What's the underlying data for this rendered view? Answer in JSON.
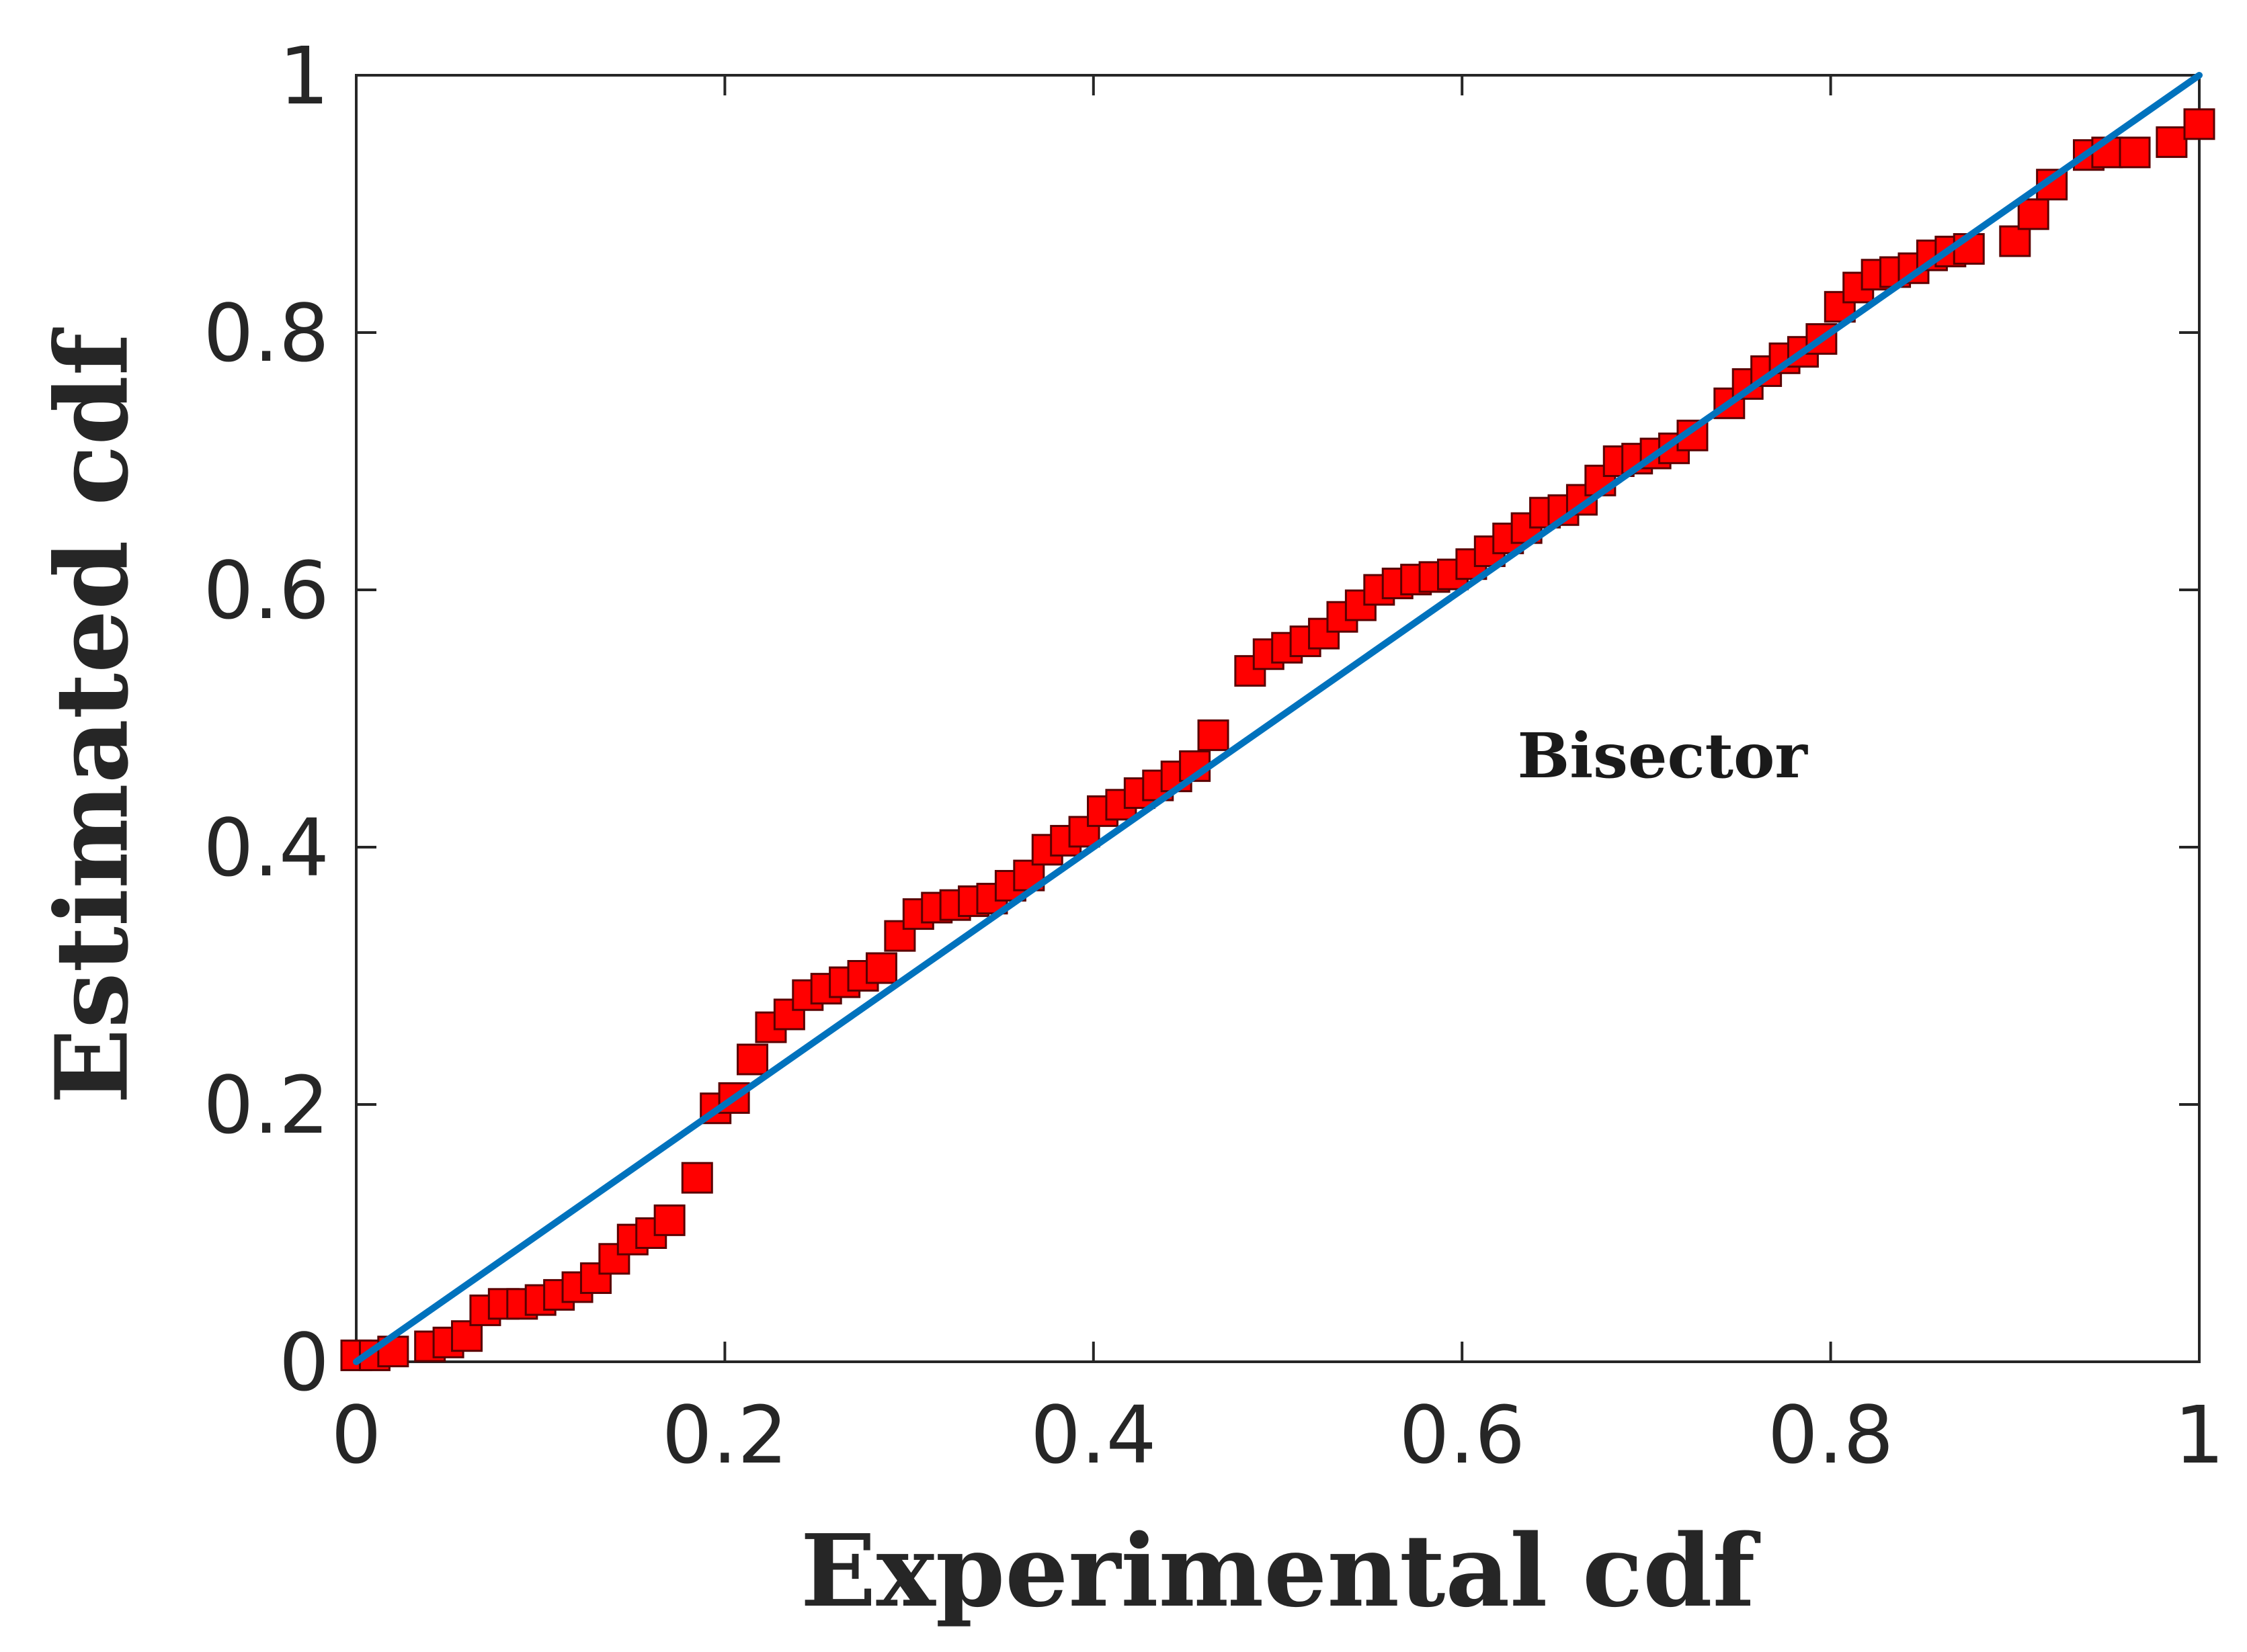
{
  "chart_data": {
    "type": "scatter",
    "xlabel": "Experimental cdf",
    "ylabel": "Estimated cdf",
    "xlim": [
      0,
      1
    ],
    "ylim": [
      0,
      1
    ],
    "xticks": [
      0,
      0.2,
      0.4,
      0.6,
      0.8,
      1
    ],
    "xtick_labels": [
      "0",
      "0.2",
      "0.4",
      "0.6",
      "0.8",
      "1"
    ],
    "yticks": [
      0,
      0.2,
      0.4,
      0.6,
      0.8,
      1
    ],
    "ytick_labels": [
      "0",
      "0.2",
      "0.4",
      "0.6",
      "0.8",
      "1"
    ],
    "grid": false,
    "colors": {
      "points": "#ff0000",
      "point_edge": "#5a0000",
      "reference_line": "#0072bd",
      "axes": "#262626"
    },
    "series": [
      {
        "marker": "square",
        "x": [
          0.0,
          0.01,
          0.02,
          0.04,
          0.05,
          0.06,
          0.07,
          0.08,
          0.09,
          0.1,
          0.11,
          0.12,
          0.13,
          0.14,
          0.15,
          0.16,
          0.17,
          0.185,
          0.195,
          0.205,
          0.215,
          0.225,
          0.235,
          0.245,
          0.255,
          0.265,
          0.275,
          0.285,
          0.295,
          0.305,
          0.315,
          0.325,
          0.335,
          0.345,
          0.355,
          0.365,
          0.375,
          0.385,
          0.395,
          0.405,
          0.415,
          0.425,
          0.435,
          0.445,
          0.455,
          0.465,
          0.485,
          0.495,
          0.505,
          0.515,
          0.525,
          0.535,
          0.545,
          0.555,
          0.565,
          0.575,
          0.585,
          0.595,
          0.605,
          0.615,
          0.625,
          0.635,
          0.645,
          0.655,
          0.665,
          0.675,
          0.685,
          0.695,
          0.705,
          0.715,
          0.725,
          0.745,
          0.755,
          0.765,
          0.775,
          0.785,
          0.795,
          0.805,
          0.815,
          0.825,
          0.835,
          0.845,
          0.855,
          0.865,
          0.875,
          0.9,
          0.91,
          0.92,
          0.94,
          0.95,
          0.965,
          0.985,
          1.0
        ],
        "y": [
          0.005,
          0.005,
          0.008,
          0.012,
          0.015,
          0.02,
          0.04,
          0.045,
          0.045,
          0.048,
          0.052,
          0.058,
          0.065,
          0.08,
          0.095,
          0.1,
          0.11,
          0.143,
          0.197,
          0.205,
          0.235,
          0.26,
          0.27,
          0.285,
          0.29,
          0.295,
          0.3,
          0.306,
          0.331,
          0.348,
          0.353,
          0.355,
          0.358,
          0.36,
          0.37,
          0.378,
          0.398,
          0.405,
          0.412,
          0.428,
          0.433,
          0.442,
          0.448,
          0.455,
          0.463,
          0.487,
          0.537,
          0.55,
          0.555,
          0.56,
          0.566,
          0.579,
          0.588,
          0.6,
          0.605,
          0.608,
          0.61,
          0.612,
          0.62,
          0.63,
          0.64,
          0.648,
          0.66,
          0.662,
          0.67,
          0.685,
          0.7,
          0.702,
          0.706,
          0.71,
          0.72,
          0.745,
          0.76,
          0.77,
          0.78,
          0.785,
          0.795,
          0.82,
          0.835,
          0.845,
          0.847,
          0.85,
          0.86,
          0.863,
          0.865,
          0.871,
          0.892,
          0.915,
          0.938,
          0.94,
          0.94,
          0.948,
          0.962
        ]
      }
    ],
    "reference_line": {
      "x": [
        0,
        1
      ],
      "y": [
        0,
        1
      ]
    },
    "annotations": [
      {
        "text": "Bisector",
        "x": 0.63,
        "y": 0.47
      }
    ]
  }
}
